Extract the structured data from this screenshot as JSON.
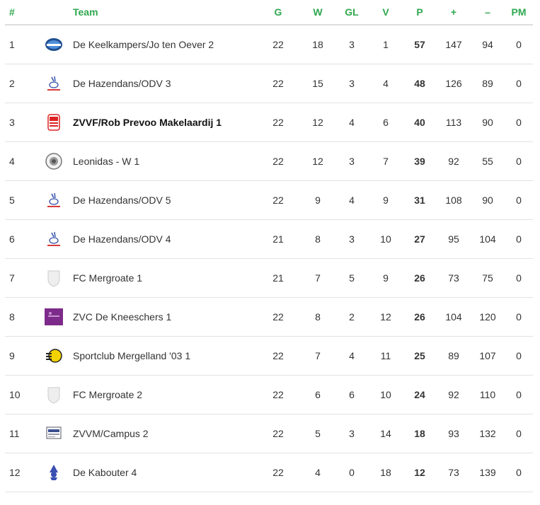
{
  "columns": {
    "pos": "#",
    "logo": "",
    "team": "Team",
    "g": "G",
    "w": "W",
    "gl": "GL",
    "v": "V",
    "p": "P",
    "plus": "+",
    "minus": "–",
    "pm": "PM"
  },
  "rows": [
    {
      "pos": "1",
      "team": "De Keelkampers/Jo ten Oever 2",
      "g": "22",
      "w": "18",
      "gl": "3",
      "v": "1",
      "p": "57",
      "plus": "147",
      "minus": "94",
      "pm": "0",
      "logo": "keelkampers-logo-icon"
    },
    {
      "pos": "2",
      "team": "De Hazendans/ODV 3",
      "g": "22",
      "w": "15",
      "gl": "3",
      "v": "4",
      "p": "48",
      "plus": "126",
      "minus": "89",
      "pm": "0",
      "logo": "hazendans-logo-icon"
    },
    {
      "pos": "3",
      "team": "ZVVF/Rob Prevoo Makelaardij 1",
      "g": "22",
      "w": "12",
      "gl": "4",
      "v": "6",
      "p": "40",
      "plus": "113",
      "minus": "90",
      "pm": "0",
      "logo": "zvvf-logo-icon",
      "highlight": true
    },
    {
      "pos": "4",
      "team": "Leonidas - W 1",
      "g": "22",
      "w": "12",
      "gl": "3",
      "v": "7",
      "p": "39",
      "plus": "92",
      "minus": "55",
      "pm": "0",
      "logo": "leonidas-logo-icon"
    },
    {
      "pos": "5",
      "team": "De Hazendans/ODV 5",
      "g": "22",
      "w": "9",
      "gl": "4",
      "v": "9",
      "p": "31",
      "plus": "108",
      "minus": "90",
      "pm": "0",
      "logo": "hazendans-logo-icon"
    },
    {
      "pos": "6",
      "team": "De Hazendans/ODV 4",
      "g": "21",
      "w": "8",
      "gl": "3",
      "v": "10",
      "p": "27",
      "plus": "95",
      "minus": "104",
      "pm": "0",
      "logo": "hazendans-logo-icon"
    },
    {
      "pos": "7",
      "team": "FC Mergroate 1",
      "g": "21",
      "w": "7",
      "gl": "5",
      "v": "9",
      "p": "26",
      "plus": "73",
      "minus": "75",
      "pm": "0",
      "logo": "placeholder-shield-icon"
    },
    {
      "pos": "8",
      "team": "ZVC De Kneeschers 1",
      "g": "22",
      "w": "8",
      "gl": "2",
      "v": "12",
      "p": "26",
      "plus": "104",
      "minus": "120",
      "pm": "0",
      "logo": "kneeschers-logo-icon"
    },
    {
      "pos": "9",
      "team": "Sportclub Mergelland '03 1",
      "g": "22",
      "w": "7",
      "gl": "4",
      "v": "11",
      "p": "25",
      "plus": "89",
      "minus": "107",
      "pm": "0",
      "logo": "mergelland-logo-icon"
    },
    {
      "pos": "10",
      "team": "FC Mergroate 2",
      "g": "22",
      "w": "6",
      "gl": "6",
      "v": "10",
      "p": "24",
      "plus": "92",
      "minus": "110",
      "pm": "0",
      "logo": "placeholder-shield-icon"
    },
    {
      "pos": "11",
      "team": "ZVVM/Campus 2",
      "g": "22",
      "w": "5",
      "gl": "3",
      "v": "14",
      "p": "18",
      "plus": "93",
      "minus": "132",
      "pm": "0",
      "logo": "campus-logo-icon"
    },
    {
      "pos": "12",
      "team": "De Kabouter 4",
      "g": "22",
      "w": "4",
      "gl": "0",
      "v": "18",
      "p": "12",
      "plus": "73",
      "minus": "139",
      "pm": "0",
      "logo": "kabouter-logo-icon"
    }
  ]
}
